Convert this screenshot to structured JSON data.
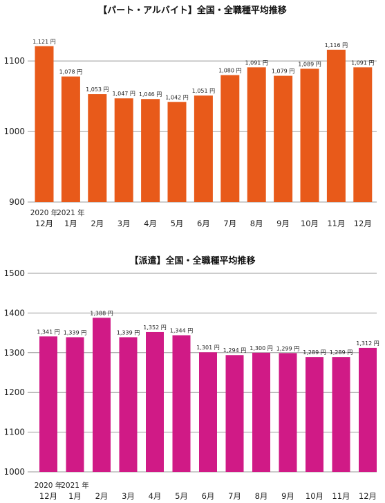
{
  "chart_data": [
    {
      "type": "bar",
      "title": "【パート・アルバイト】全国・全職種平均推移",
      "categories": [
        "12月",
        "1月",
        "2月",
        "3月",
        "4月",
        "5月",
        "6月",
        "7月",
        "8月",
        "9月",
        "10月",
        "11月",
        "12月"
      ],
      "year_labels": [
        "2020 年",
        "2021 年"
      ],
      "values": [
        1121,
        1078,
        1053,
        1047,
        1046,
        1042,
        1051,
        1080,
        1091,
        1079,
        1089,
        1116,
        1091
      ],
      "data_labels": [
        "1,121 円",
        "1,078 円",
        "1,053 円",
        "1,047 円",
        "1,046 円",
        "1,042 円",
        "1,051 円",
        "1,080 円",
        "1,091 円",
        "1,079 円",
        "1,089 円",
        "1,116 円",
        "1,091 円"
      ],
      "yticks": [
        900,
        1000,
        1100
      ],
      "ylim": [
        900,
        1160
      ],
      "grid": true,
      "color": "#E85A1A"
    },
    {
      "type": "bar",
      "title": "【派遣】全国・全職種平均推移",
      "categories": [
        "12月",
        "1月",
        "2月",
        "3月",
        "4月",
        "5月",
        "6月",
        "7月",
        "8月",
        "9月",
        "10月",
        "11月",
        "12月"
      ],
      "year_labels": [
        "2020 年",
        "2021 年"
      ],
      "values": [
        1341,
        1339,
        1388,
        1339,
        1352,
        1344,
        1301,
        1294,
        1300,
        1299,
        1289,
        1289,
        1312
      ],
      "data_labels": [
        "1,341 円",
        "1,339 円",
        "1,388 円",
        "1,339 円",
        "1,352 円",
        "1,344 円",
        "1,301 円",
        "1,294 円",
        "1,300 円",
        "1,299 円",
        "1,289 円",
        "1,289 円",
        "1,312 円"
      ],
      "yticks": [
        1000,
        1100,
        1200,
        1300,
        1400,
        1500
      ],
      "ylim": [
        1000,
        1500
      ],
      "grid": true,
      "color": "#D01A86"
    }
  ]
}
